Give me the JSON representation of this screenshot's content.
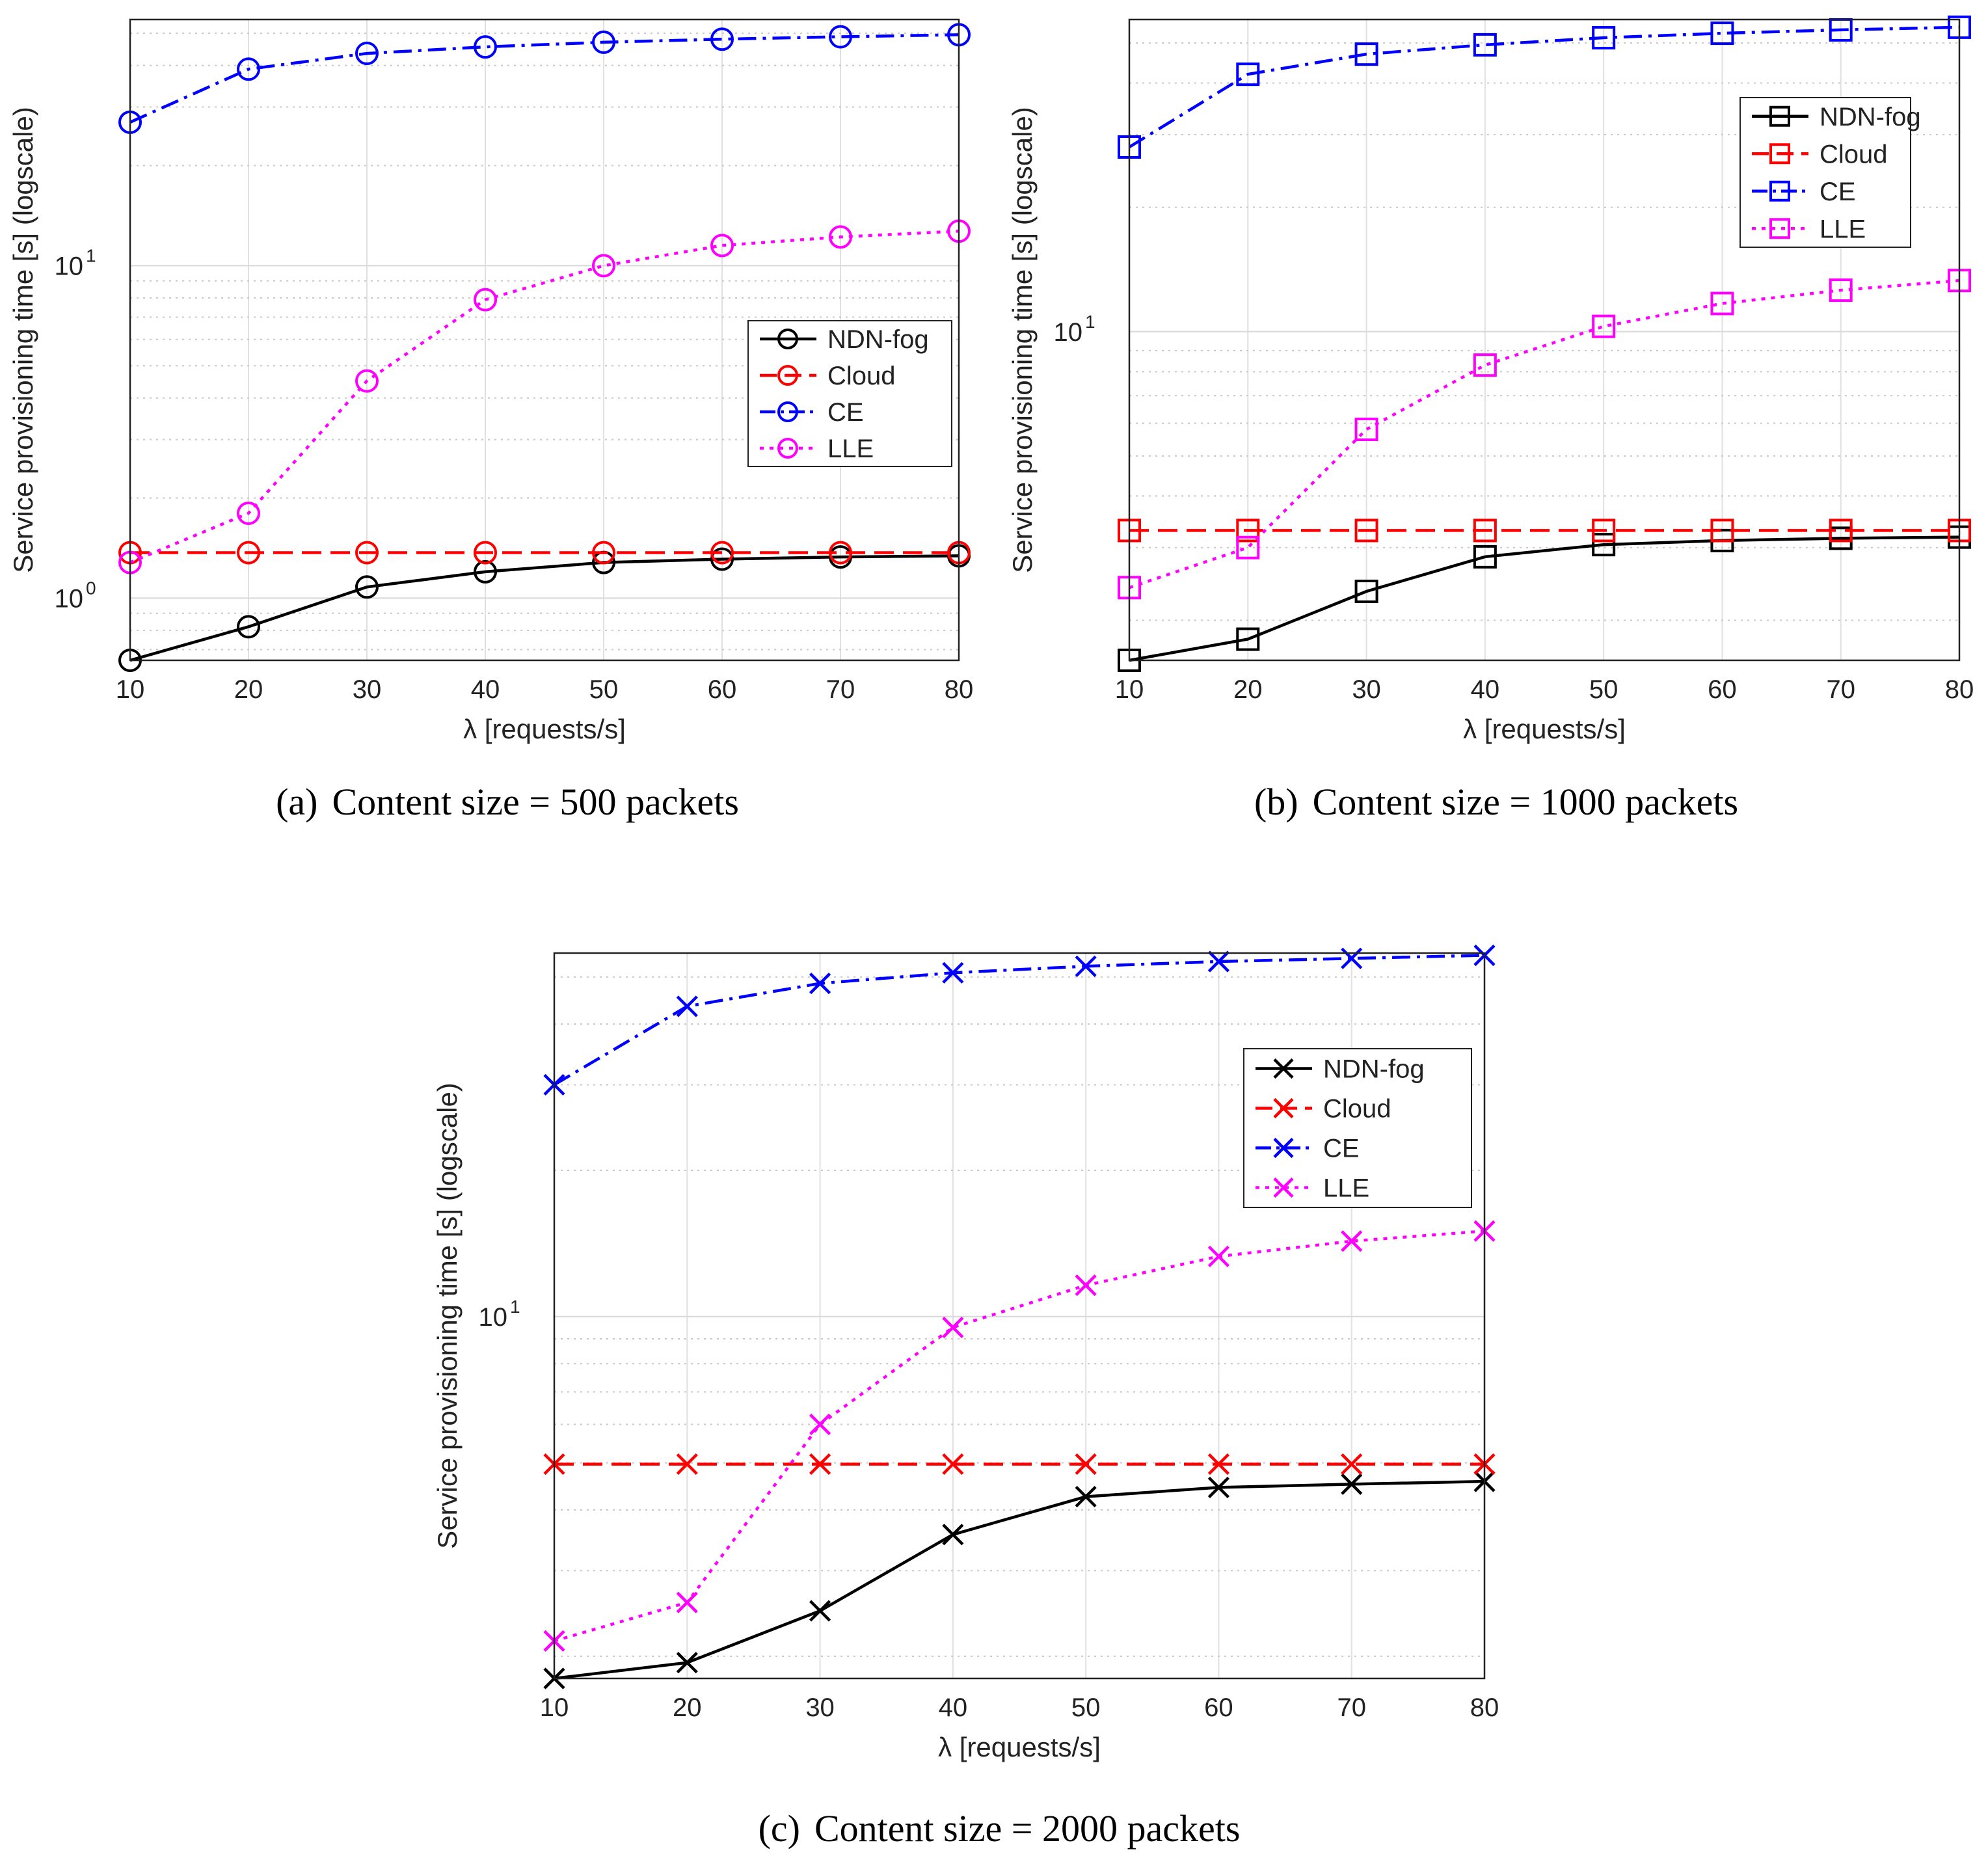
{
  "chart_data": [
    {
      "type": "line",
      "id": "a",
      "caption_tag": "(a)",
      "caption": "Content size = 500 packets",
      "xlabel": "λ [requests/s]",
      "ylabel": "Service provisioning time [s] (logscale)",
      "yscale": "log",
      "xlim": [
        10,
        80
      ],
      "ylim": [
        0.65,
        55
      ],
      "x": [
        10,
        20,
        30,
        40,
        50,
        60,
        70,
        80
      ],
      "xticks": [
        "10",
        "20",
        "30",
        "40",
        "50",
        "60",
        "70",
        "80"
      ],
      "yticks": [
        {
          "value": 1,
          "base": "10",
          "exp": "0"
        },
        {
          "value": 10,
          "base": "10",
          "exp": "1"
        }
      ],
      "grid": true,
      "marker": "circle",
      "legend_position": "center-right",
      "series": [
        {
          "name": "NDN-fog",
          "color": "#000000",
          "style": "solid",
          "values": [
            0.65,
            0.82,
            1.08,
            1.2,
            1.28,
            1.31,
            1.33,
            1.34
          ]
        },
        {
          "name": "Cloud",
          "color": "#ff0000",
          "style": "dashed",
          "values": [
            1.37,
            1.37,
            1.37,
            1.37,
            1.37,
            1.37,
            1.37,
            1.37
          ]
        },
        {
          "name": "CE",
          "color": "#0000ff",
          "style": "dashdot",
          "values": [
            27,
            39,
            43.5,
            45.5,
            47,
            48,
            48.8,
            49.5
          ]
        },
        {
          "name": "LLE",
          "color": "#ff00ff",
          "style": "dotted",
          "values": [
            1.28,
            1.8,
            4.5,
            7.9,
            10,
            11.5,
            12.2,
            12.7
          ]
        }
      ]
    },
    {
      "type": "line",
      "id": "b",
      "caption_tag": "(b)",
      "caption": "Content size = 1000 packets",
      "xlabel": "λ [requests/s]",
      "ylabel": "Service provisioning time [s] (logscale)",
      "yscale": "log",
      "xlim": [
        10,
        80
      ],
      "ylim": [
        1.6,
        57
      ],
      "x": [
        10,
        20,
        30,
        40,
        50,
        60,
        70,
        80
      ],
      "xticks": [
        "10",
        "20",
        "30",
        "40",
        "50",
        "60",
        "70",
        "80"
      ],
      "yticks": [
        {
          "value": 10,
          "base": "10",
          "exp": "1"
        }
      ],
      "grid": true,
      "marker": "square",
      "legend_position": "top-right",
      "series": [
        {
          "name": "NDN-fog",
          "color": "#000000",
          "style": "solid",
          "values": [
            1.6,
            1.8,
            2.35,
            2.85,
            3.05,
            3.12,
            3.16,
            3.18
          ]
        },
        {
          "name": "Cloud",
          "color": "#ff0000",
          "style": "dashed",
          "values": [
            3.3,
            3.3,
            3.3,
            3.3,
            3.3,
            3.3,
            3.3,
            3.3
          ]
        },
        {
          "name": "CE",
          "color": "#0000ff",
          "style": "dashdot",
          "values": [
            28,
            42,
            47,
            49.5,
            51.5,
            52.8,
            53.8,
            54.6
          ]
        },
        {
          "name": "LLE",
          "color": "#ff00ff",
          "style": "dotted",
          "values": [
            2.4,
            3.0,
            5.8,
            8.3,
            10.3,
            11.7,
            12.6,
            13.3
          ]
        }
      ]
    },
    {
      "type": "line",
      "id": "c",
      "caption_tag": "(c)",
      "caption": "Content size = 2000 packets",
      "xlabel": "λ [requests/s]",
      "ylabel": "Service provisioning time [s] (logscale)",
      "yscale": "log",
      "xlim": [
        10,
        80
      ],
      "ylim": [
        1.8,
        56
      ],
      "x": [
        10,
        20,
        30,
        40,
        50,
        60,
        70,
        80
      ],
      "xticks": [
        "10",
        "20",
        "30",
        "40",
        "50",
        "60",
        "70",
        "80"
      ],
      "yticks": [
        {
          "value": 10,
          "base": "10",
          "exp": "1"
        }
      ],
      "grid": true,
      "marker": "x",
      "legend_position": "top-right",
      "series": [
        {
          "name": "NDN-fog",
          "color": "#000000",
          "style": "solid",
          "values": [
            1.8,
            1.94,
            2.48,
            3.56,
            4.26,
            4.45,
            4.52,
            4.58
          ]
        },
        {
          "name": "Cloud",
          "color": "#ff0000",
          "style": "dashed",
          "values": [
            4.97,
            4.97,
            4.97,
            4.97,
            4.97,
            4.97,
            4.97,
            4.97
          ]
        },
        {
          "name": "CE",
          "color": "#0000ff",
          "style": "dashdot",
          "values": [
            30,
            43.5,
            48.5,
            51,
            52.6,
            53.8,
            54.6,
            55.4
          ]
        },
        {
          "name": "LLE",
          "color": "#ff00ff",
          "style": "dotted",
          "values": [
            2.15,
            2.58,
            6.0,
            9.5,
            11.6,
            13.3,
            14.3,
            15.0
          ]
        }
      ]
    }
  ]
}
